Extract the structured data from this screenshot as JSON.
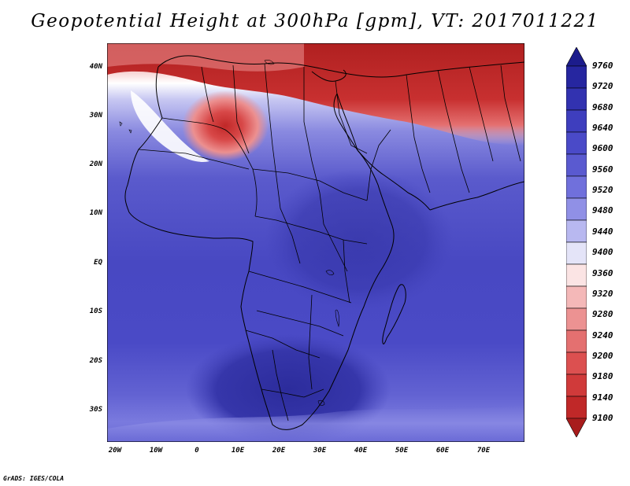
{
  "title": "Geopotential Height at 300hPa [gpm], VT: 2017011221",
  "credit": "GrADS: IGES/COLA",
  "lat_labels": [
    "40N",
    "30N",
    "20N",
    "10N",
    "EQ",
    "10S",
    "20S",
    "30S"
  ],
  "lon_labels": [
    "20W",
    "10W",
    "0",
    "10E",
    "20E",
    "30E",
    "40E",
    "50E",
    "60E",
    "70E"
  ],
  "colorbar": {
    "levels": [
      "9760",
      "9720",
      "9680",
      "9640",
      "9600",
      "9560",
      "9520",
      "9480",
      "9440",
      "9400",
      "9360",
      "9320",
      "9280",
      "9240",
      "9200",
      "9180",
      "9140",
      "9100"
    ],
    "colors": [
      "#1c1c8c",
      "#2626a0",
      "#3232b0",
      "#3e3ebe",
      "#4a4ac8",
      "#5a5ad0",
      "#7070dc",
      "#9090e6",
      "#b8b8f0",
      "#e4e4f8",
      "#fbe4e4",
      "#f4b8b8",
      "#ec9292",
      "#e47070",
      "#dc5050",
      "#d03a3a",
      "#c02828",
      "#a81c1c"
    ]
  },
  "units": "gpm",
  "valid_time": "2017011221"
}
